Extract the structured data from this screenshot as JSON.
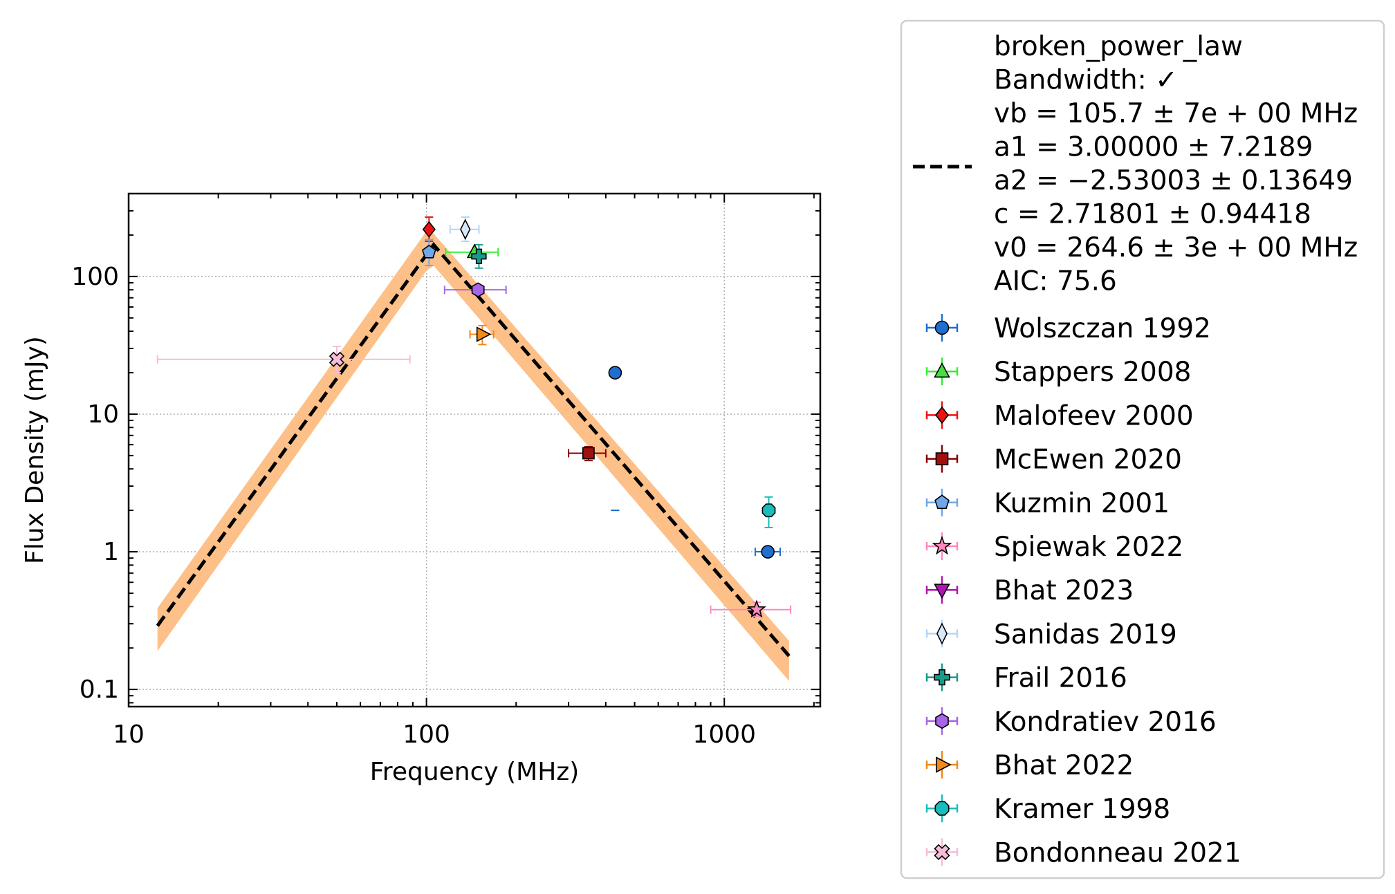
{
  "chart_data": {
    "type": "scatter",
    "xlabel": "Frequency (MHz)",
    "ylabel": "Flux Density (mJy)",
    "xscale": "log",
    "yscale": "log",
    "xlim": [
      10,
      2100
    ],
    "ylim": [
      0.075,
      400
    ],
    "grid": true,
    "legend_placement": "outside-right",
    "x_ticks": [
      {
        "value": 10,
        "label": "10"
      },
      {
        "value": 100,
        "label": "100"
      },
      {
        "value": 1000,
        "label": "1000"
      }
    ],
    "y_ticks": [
      {
        "value": 0.1,
        "label": "0.1"
      },
      {
        "value": 1,
        "label": "1"
      },
      {
        "value": 10,
        "label": "10"
      },
      {
        "value": 100,
        "label": "100"
      }
    ],
    "fit": {
      "model": "broken_power_law",
      "legend_lines": [
        "broken_power_law",
        "Bandwidth: ✓",
        "vb = 105.7 ± 7e + 00 MHz",
        "a1 = 3.00000 ± 7.2189",
        "a2 = −2.53003 ± 0.13649",
        "c = 2.71801 ± 0.94418",
        "v0 = 264.6 ± 3e + 00 MHz",
        "AIC: 75.6"
      ],
      "vb": 105.7,
      "a1": 3.0,
      "a2": -2.53003,
      "c": 2.71801,
      "v0": 264.6,
      "x_range": [
        12.5,
        1650
      ],
      "line_color": "#000000",
      "band_color": "#fdc089",
      "curve": [
        [
          12.5,
          0.29
        ],
        [
          105.7,
          170
        ],
        [
          1650,
          0.175
        ]
      ],
      "band_lower": [
        [
          12.5,
          0.19
        ],
        [
          100,
          110
        ],
        [
          105.7,
          120
        ],
        [
          1650,
          0.115
        ]
      ],
      "band_upper": [
        [
          12.5,
          0.39
        ],
        [
          101,
          220
        ],
        [
          105.7,
          205
        ],
        [
          1650,
          0.225
        ]
      ]
    },
    "series": [
      {
        "name": "Wolszczan 1992",
        "marker": "circle",
        "color": "#1f6fd0",
        "ecolor": "#1f6fd0",
        "points": [
          {
            "x": 430,
            "y": 20,
            "xerr": [
              0,
              0
            ],
            "yerr": [
              2,
              2
            ]
          },
          {
            "x": 1400,
            "y": 1,
            "xerr": [
              1270,
              1540
            ],
            "yerr": [
              0,
              0
            ]
          }
        ]
      },
      {
        "name": "Stappers 2008",
        "marker": "triangle-up",
        "color": "#44dd44",
        "ecolor": "#33ee33",
        "points": [
          {
            "x": 145,
            "y": 150,
            "xerr": [
              116,
              174
            ],
            "yerr": [
              0,
              0
            ]
          }
        ]
      },
      {
        "name": "Malofeev 2000",
        "marker": "diamond",
        "color": "#ee1111",
        "ecolor": "#ee1111",
        "points": [
          {
            "x": 102,
            "y": 220,
            "xerr": [
              0,
              0
            ],
            "yerr": [
              180,
              270
            ]
          }
        ]
      },
      {
        "name": "McEwen 2020",
        "marker": "square",
        "color": "#a01010",
        "ecolor": "#8b0000",
        "points": [
          {
            "x": 350,
            "y": 5.2,
            "xerr": [
              300,
              400
            ],
            "yerr": [
              4.6,
              5.8
            ]
          }
        ]
      },
      {
        "name": "Kuzmin 2001",
        "marker": "pentagon",
        "color": "#6fa8e8",
        "ecolor": "#6fa8e8",
        "points": [
          {
            "x": 102,
            "y": 150,
            "xerr": [
              0,
              0
            ],
            "yerr": [
              120,
              185
            ]
          }
        ]
      },
      {
        "name": "Spiewak 2022",
        "marker": "star",
        "color": "#ff88c0",
        "ecolor": "#ff88c0",
        "points": [
          {
            "x": 1284,
            "y": 0.38,
            "xerr": [
              900,
              1670
            ],
            "yerr": [
              0.34,
              0.43
            ]
          }
        ]
      },
      {
        "name": "Bhat 2023",
        "marker": "triangle-down",
        "color": "#b313b3",
        "ecolor": "#b313b3",
        "points": []
      },
      {
        "name": "Sanidas 2019",
        "marker": "thin-diamond",
        "color": "#d6e8fa",
        "ecolor": "#b4d5f4",
        "points": [
          {
            "x": 135,
            "y": 220,
            "xerr": [
              120,
              150
            ],
            "yerr": [
              180,
              270
            ]
          }
        ]
      },
      {
        "name": "Frail 2016",
        "marker": "plus",
        "color": "#1a9a8a",
        "ecolor": "#1a9a8a",
        "points": [
          {
            "x": 150,
            "y": 140,
            "xerr": [
              0,
              0
            ],
            "yerr": [
              115,
              170
            ]
          }
        ]
      },
      {
        "name": "Kondratiev 2016",
        "marker": "hexagon",
        "color": "#a865e8",
        "ecolor": "#a865e8",
        "points": [
          {
            "x": 149,
            "y": 80,
            "xerr": [
              115,
              185
            ],
            "yerr": [
              0,
              0
            ]
          }
        ]
      },
      {
        "name": "Bhat 2022",
        "marker": "triangle-right",
        "color": "#f08a1a",
        "ecolor": "#f08a1a",
        "points": [
          {
            "x": 154,
            "y": 38,
            "xerr": [
              140,
              168
            ],
            "yerr": [
              32,
              44
            ]
          }
        ]
      },
      {
        "name": "Kramer 1998",
        "marker": "octagon",
        "color": "#1abcbc",
        "ecolor": "#1abcbc",
        "points": [
          {
            "x": 1410,
            "y": 2,
            "xerr": [
              0,
              0
            ],
            "yerr": [
              1.5,
              2.5
            ]
          }
        ]
      },
      {
        "name": "Bondonneau 2021",
        "marker": "x-filled",
        "color": "#f6bcd8",
        "ecolor": "#f6bcd8",
        "points": [
          {
            "x": 50,
            "y": 25,
            "xerr": [
              12.5,
              88
            ],
            "yerr": [
              20,
              31
            ]
          }
        ]
      }
    ]
  }
}
